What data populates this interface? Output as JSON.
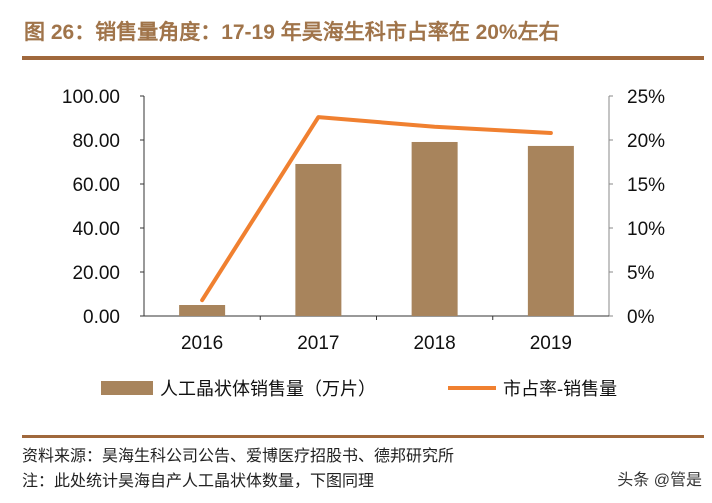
{
  "title": "图 26：销售量角度：17-19 年昊海生科市占率在 20%左右",
  "chart_data": {
    "type": "bar+line",
    "categories": [
      "2016",
      "2017",
      "2018",
      "2019"
    ],
    "series": [
      {
        "name": "人工晶状体销售量（万片）",
        "type": "bar",
        "axis": "left",
        "color": "#a8845c",
        "values": [
          5.0,
          69.1,
          79.1,
          77.3
        ]
      },
      {
        "name": "市占率-销售量",
        "type": "line",
        "axis": "right",
        "color": "#f08030",
        "values": [
          1.8,
          22.6,
          21.5,
          20.8
        ]
      }
    ],
    "left_axis": {
      "ylim": [
        0,
        100
      ],
      "ticks": [
        "0.00",
        "20.00",
        "40.00",
        "60.00",
        "80.00",
        "100.00"
      ]
    },
    "right_axis": {
      "ylim": [
        0,
        25
      ],
      "ticks": [
        "0%",
        "5%",
        "10%",
        "15%",
        "20%",
        "25%"
      ]
    },
    "grid": false,
    "legend": "bottom"
  },
  "footer": {
    "source": "资料来源：昊海生科公司公告、爱博医疗招股书、德邦研究所",
    "note": "注：此处统计昊海自产人工晶状体数量，下图同理",
    "watermark": "头条 @管是"
  }
}
